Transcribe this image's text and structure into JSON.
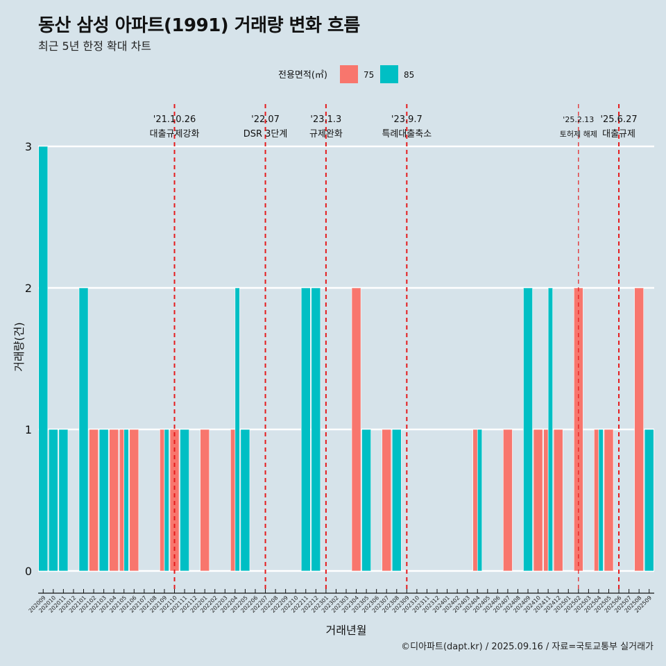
{
  "header": {
    "title": "동산 삼성 아파트(1991) 거래량 변화 흐름",
    "subtitle": "최근 5년 한정 확대 차트",
    "caption": "©디아파트(dapt.kr) / 2025.09.16 / 자료=국토교통부 실거래가"
  },
  "colors": {
    "background": "#d6e3ea",
    "s75": "#f8766d",
    "s85": "#00bfc4",
    "event_line": "#e41a1c",
    "grid": "#ffffff"
  },
  "chart_data": {
    "type": "bar",
    "title": "동산 삼성 아파트(1991) 거래량 변화 흐름",
    "subtitle": "최근 5년 한정 확대 차트",
    "xlabel": "거래년월",
    "ylabel": "거래량(건)",
    "ylim": [
      0,
      3
    ],
    "yticks": [
      0,
      1,
      2,
      3
    ],
    "legend": {
      "title": "전용면적(㎡)",
      "position": "top",
      "labels": [
        "75",
        "85"
      ]
    },
    "categories": [
      "202009",
      "202010",
      "202011",
      "202012",
      "202101",
      "202102",
      "202103",
      "202104",
      "202105",
      "202106",
      "202107",
      "202108",
      "202109",
      "202110",
      "202111",
      "202112",
      "202201",
      "202202",
      "202203",
      "202204",
      "202205",
      "202206",
      "202207",
      "202208",
      "202209",
      "202210",
      "202211",
      "202212",
      "202301",
      "202302",
      "202303",
      "202304",
      "202305",
      "202306",
      "202307",
      "202308",
      "202309",
      "202310",
      "202311",
      "202312",
      "202401",
      "202402",
      "202403",
      "202404",
      "202405",
      "202406",
      "202407",
      "202408",
      "202409",
      "202410",
      "202411",
      "202412",
      "202501",
      "202502",
      "202503",
      "202504",
      "202505",
      "202506",
      "202507",
      "202508",
      "202509"
    ],
    "series": [
      {
        "name": "75",
        "values": [
          0,
          0,
          0,
          0,
          0,
          1,
          0,
          1,
          1,
          1,
          0,
          0,
          1,
          1,
          0,
          0,
          1,
          0,
          0,
          1,
          0,
          0,
          0,
          0,
          0,
          0,
          0,
          0,
          0,
          0,
          0,
          2,
          0,
          0,
          1,
          0,
          0,
          0,
          0,
          0,
          0,
          0,
          0,
          1,
          0,
          0,
          1,
          0,
          0,
          1,
          1,
          1,
          0,
          2,
          0,
          1,
          1,
          0,
          0,
          2,
          0
        ]
      },
      {
        "name": "85",
        "values": [
          3,
          1,
          1,
          0,
          2,
          0,
          1,
          0,
          1,
          0,
          0,
          0,
          1,
          0,
          1,
          0,
          0,
          0,
          0,
          2,
          1,
          0,
          0,
          0,
          0,
          0,
          2,
          2,
          0,
          0,
          0,
          0,
          1,
          0,
          0,
          1,
          0,
          0,
          0,
          0,
          0,
          0,
          0,
          1,
          0,
          0,
          0,
          0,
          2,
          0,
          2,
          0,
          0,
          0,
          0,
          1,
          0,
          0,
          0,
          0,
          1
        ]
      }
    ],
    "events": [
      {
        "at": "202110",
        "date": "'21.10.26",
        "label": "대출규제강화"
      },
      {
        "at": "202207",
        "date": "'22.07",
        "label": "DSR 3단계"
      },
      {
        "at": "202301",
        "date": "'23.1.3",
        "label": "규제완화"
      },
      {
        "at": "202309",
        "date": "'23.9.7",
        "label": "특례대출축소"
      },
      {
        "at": "202502",
        "date": "'25.2.13",
        "label": "토허제 해제"
      },
      {
        "at": "202506",
        "date": "'25.6.27",
        "label": "대출규제"
      }
    ],
    "grid": true
  }
}
